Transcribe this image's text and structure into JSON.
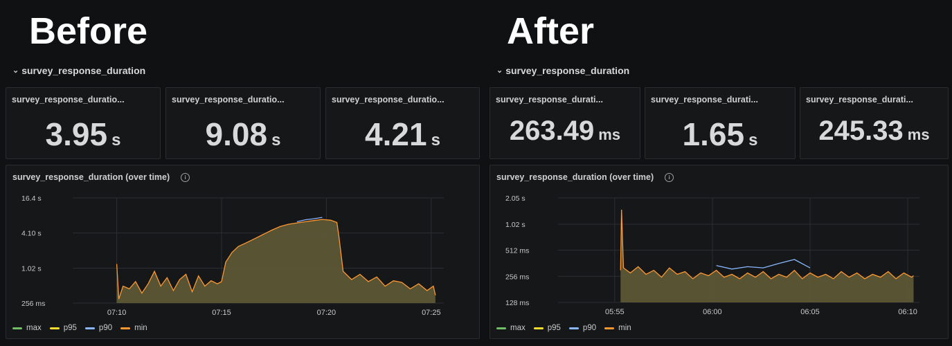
{
  "before": {
    "heading": "Before",
    "row_title": "survey_response_duration",
    "stats": [
      {
        "title": "survey_response_duratio...",
        "value": "3.95",
        "unit": "s"
      },
      {
        "title": "survey_response_duratio...",
        "value": "9.08",
        "unit": "s"
      },
      {
        "title": "survey_response_duratio...",
        "value": "4.21",
        "unit": "s"
      }
    ],
    "timeseries_title": "survey_response_duration (over time)"
  },
  "after": {
    "heading": "After",
    "row_title": "survey_response_duration",
    "stats": [
      {
        "title": "survey_response_durati...",
        "value": "263.49",
        "unit": "ms"
      },
      {
        "title": "survey_response_durati...",
        "value": "1.65",
        "unit": "s"
      },
      {
        "title": "survey_response_durati...",
        "value": "245.33",
        "unit": "ms"
      }
    ],
    "timeseries_title": "survey_response_duration (over time)"
  },
  "legend": [
    {
      "name": "max",
      "color": "#73bf69"
    },
    {
      "name": "p95",
      "color": "#fade2a"
    },
    {
      "name": "p90",
      "color": "#8ab8ff"
    },
    {
      "name": "min",
      "color": "#ff9830"
    }
  ],
  "icons": {
    "row_chevron": "chevron-down-icon",
    "info": "info-icon"
  },
  "colors": {
    "background": "#101113",
    "panel": "#161719",
    "area_fill": "#5e5a36",
    "grid": "#2a2c30"
  },
  "chart_data": [
    {
      "type": "area",
      "title": "survey_response_duration (over time)",
      "y_scale": "log2",
      "y_ticks": [
        "256 ms",
        "1.02 s",
        "4.10 s",
        "16.4 s"
      ],
      "y_tick_values_s": [
        0.256,
        1.02,
        4.1,
        16.4
      ],
      "x_ticks": [
        "07:10",
        "07:15",
        "07:20",
        "07:25"
      ],
      "x_tick_minutes": [
        10,
        15,
        20,
        25
      ],
      "x_range_minutes": [
        7.9,
        25.6
      ],
      "series": [
        {
          "name": "min",
          "x": [
            10.0,
            10.1,
            10.3,
            10.6,
            10.9,
            11.2,
            11.5,
            11.8,
            12.1,
            12.4,
            12.7,
            13.0,
            13.3,
            13.6,
            13.9,
            14.2,
            14.5,
            14.8,
            15.0,
            15.2,
            15.5,
            15.8,
            16.2,
            16.6,
            17.0,
            17.4,
            17.8,
            18.2,
            18.6,
            19.0,
            19.4,
            19.8,
            20.2,
            20.5,
            20.6,
            20.8,
            21.2,
            21.6,
            22.0,
            22.4,
            22.8,
            23.2,
            23.6,
            24.0,
            24.4,
            24.8,
            25.1,
            25.2
          ],
          "values_s": [
            1.2,
            0.3,
            0.5,
            0.45,
            0.6,
            0.38,
            0.55,
            0.9,
            0.5,
            0.7,
            0.42,
            0.65,
            0.8,
            0.4,
            0.75,
            0.5,
            0.62,
            0.55,
            0.6,
            1.3,
            1.9,
            2.4,
            2.8,
            3.3,
            3.9,
            4.6,
            5.3,
            5.8,
            6.1,
            6.4,
            6.7,
            7.0,
            6.8,
            6.2,
            3.5,
            0.9,
            0.65,
            0.8,
            0.6,
            0.72,
            0.5,
            0.62,
            0.58,
            0.45,
            0.55,
            0.42,
            0.5,
            0.35
          ]
        },
        {
          "name": "p90",
          "x": [
            18.6,
            19.0,
            19.4,
            19.8
          ],
          "values_s": [
            6.4,
            6.9,
            7.2,
            7.6
          ]
        }
      ]
    },
    {
      "type": "area",
      "title": "survey_response_duration (over time)",
      "y_scale": "log2",
      "y_ticks": [
        "128 ms",
        "256 ms",
        "512 ms",
        "1.02 s",
        "2.05 s"
      ],
      "y_tick_values_s": [
        0.128,
        0.256,
        0.512,
        1.02,
        2.05
      ],
      "x_ticks": [
        "05:55",
        "06:00",
        "06:05",
        "06:10"
      ],
      "x_tick_minutes": [
        55,
        60,
        65,
        70
      ],
      "x_range_minutes": [
        52.1,
        70.6
      ],
      "series": [
        {
          "name": "min",
          "x": [
            55.3,
            55.35,
            55.45,
            55.8,
            56.2,
            56.6,
            57.0,
            57.4,
            57.8,
            58.2,
            58.6,
            59.0,
            59.4,
            59.8,
            60.2,
            60.6,
            61.0,
            61.4,
            61.8,
            62.2,
            62.6,
            63.0,
            63.4,
            63.8,
            64.2,
            64.6,
            65.0,
            65.4,
            65.8,
            66.2,
            66.6,
            67.0,
            67.4,
            67.8,
            68.2,
            68.6,
            69.0,
            69.4,
            69.8,
            70.2,
            70.3
          ],
          "values_s": [
            0.3,
            1.5,
            0.32,
            0.28,
            0.33,
            0.27,
            0.3,
            0.25,
            0.32,
            0.27,
            0.29,
            0.24,
            0.28,
            0.26,
            0.3,
            0.25,
            0.27,
            0.24,
            0.28,
            0.25,
            0.29,
            0.24,
            0.27,
            0.25,
            0.3,
            0.24,
            0.28,
            0.25,
            0.27,
            0.24,
            0.29,
            0.25,
            0.28,
            0.24,
            0.27,
            0.25,
            0.29,
            0.24,
            0.28,
            0.25,
            0.26
          ]
        },
        {
          "name": "p90",
          "x": [
            60.2,
            61.0,
            61.8,
            62.6,
            63.4,
            64.2,
            65.0
          ],
          "values_s": [
            0.34,
            0.31,
            0.33,
            0.32,
            0.36,
            0.4,
            0.32
          ]
        }
      ]
    }
  ]
}
